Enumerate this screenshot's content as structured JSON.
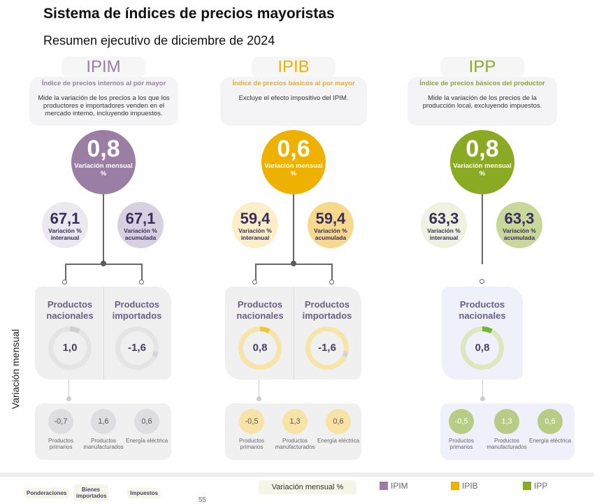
{
  "title": "Sistema de índices de precios mayoristas",
  "subtitle": "Resumen ejecutivo de diciembre de 2024",
  "side_label": "Variación mensual",
  "columns": [
    {
      "key": "IPIM",
      "name": "Índice de precios internos al por mayor",
      "desc": "Mide la variación de los precios a los que los productores e importadores venden en el mercado interno, incluyendo impuestos.",
      "color": "#9b7ea3",
      "monthly": "0,8",
      "monthly_label": "Variación mensual %",
      "interanual": "67,1",
      "interanual_label": "Variación % interanual",
      "acumulada": "67,1",
      "acumulada_label": "Variación % acumulada",
      "products": [
        {
          "label": "Productos nacionales",
          "value": "1,0"
        },
        {
          "label": "Productos importados",
          "value": "-1,6"
        }
      ],
      "breakdown": [
        {
          "value": "-0,7",
          "label": "Productos primarios"
        },
        {
          "value": "1,6",
          "label": "Productos manufacturados"
        },
        {
          "value": "0,6",
          "label": "Energía eléctrica"
        }
      ]
    },
    {
      "key": "IPIB",
      "name": "Índice de precios básicos al por mayor",
      "desc": "Excluye el efecto impositivo del IPIM.",
      "color": "#efb100",
      "monthly": "0,6",
      "monthly_label": "Variación mensual %",
      "interanual": "59,4",
      "interanual_label": "Variación % interanual",
      "acumulada": "59,4",
      "acumulada_label": "Variación % acumulada",
      "products": [
        {
          "label": "Productos nacionales",
          "value": "0,8"
        },
        {
          "label": "Productos importados",
          "value": "-1,6"
        }
      ],
      "breakdown": [
        {
          "value": "-0,5",
          "label": "Productos primarios"
        },
        {
          "value": "1,3",
          "label": "Productos manufacturados"
        },
        {
          "value": "0,6",
          "label": "Energía eléctrica"
        }
      ]
    },
    {
      "key": "IPP",
      "name": "Índice de precios básicos del productor",
      "desc": "Mide la variación de los precios de la producción local, excluyendo impuestos.",
      "color": "#8aaa24",
      "monthly": "0,8",
      "monthly_label": "Variación mensual %",
      "interanual": "63,3",
      "interanual_label": "Variación % interanual",
      "acumulada": "63,3",
      "acumulada_label": "Variación % acumulada",
      "products": [
        {
          "label": "Productos nacionales",
          "value": "0,8"
        }
      ],
      "breakdown": [
        {
          "value": "-0,5",
          "label": "Productos primarios"
        },
        {
          "value": "1,3",
          "label": "Productos manufacturados"
        },
        {
          "value": "0,6",
          "label": "Energía eléctrica"
        }
      ]
    }
  ],
  "footer": {
    "chips": [
      "Ponderaciones",
      "Bienes importados",
      "Impuestos"
    ],
    "page": "55",
    "legend_title": "Variación mensual %",
    "legend": [
      {
        "label": "IPIM",
        "color": "#9b7ea3"
      },
      {
        "label": "IPIB",
        "color": "#efb100"
      },
      {
        "label": "IPP",
        "color": "#8aaa24"
      }
    ]
  }
}
